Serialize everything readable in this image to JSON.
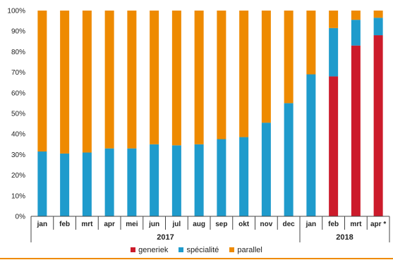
{
  "chart_data": {
    "type": "bar",
    "stacked": true,
    "categories": [
      "jan",
      "feb",
      "mrt",
      "apr",
      "mei",
      "jun",
      "jul",
      "aug",
      "sep",
      "okt",
      "nov",
      "dec",
      "jan",
      "feb",
      "mrt",
      "apr *"
    ],
    "groups": [
      {
        "label": "2017",
        "start": 0,
        "end": 11
      },
      {
        "label": "2018",
        "start": 12,
        "end": 15
      }
    ],
    "series": [
      {
        "name": "generiek",
        "color": "#cc1b2b",
        "values": [
          0,
          0,
          0,
          0,
          0,
          0,
          0,
          0,
          0,
          0,
          0,
          0,
          0,
          68,
          83,
          88
        ]
      },
      {
        "name": "spécialité",
        "color": "#1f9bcc",
        "values": [
          31.5,
          30.5,
          31,
          33,
          33,
          35,
          34.5,
          35,
          37.5,
          38.5,
          45.5,
          55,
          69,
          23.5,
          12.5,
          8.5
        ]
      },
      {
        "name": "parallel",
        "color": "#ee8a00",
        "values": [
          68.5,
          69.5,
          69,
          67,
          67,
          65,
          65.5,
          65,
          62.5,
          61.5,
          54.5,
          45,
          31,
          8.5,
          4.5,
          3.5
        ]
      }
    ],
    "y_ticks": [
      "0%",
      "10%",
      "20%",
      "30%",
      "40%",
      "50%",
      "60%",
      "70%",
      "80%",
      "90%",
      "100%"
    ],
    "ylim": [
      0,
      100
    ],
    "title": "",
    "xlabel": "",
    "ylabel": "",
    "legend_position": "bottom",
    "grid": false
  },
  "frame_color": "#ee8a00"
}
